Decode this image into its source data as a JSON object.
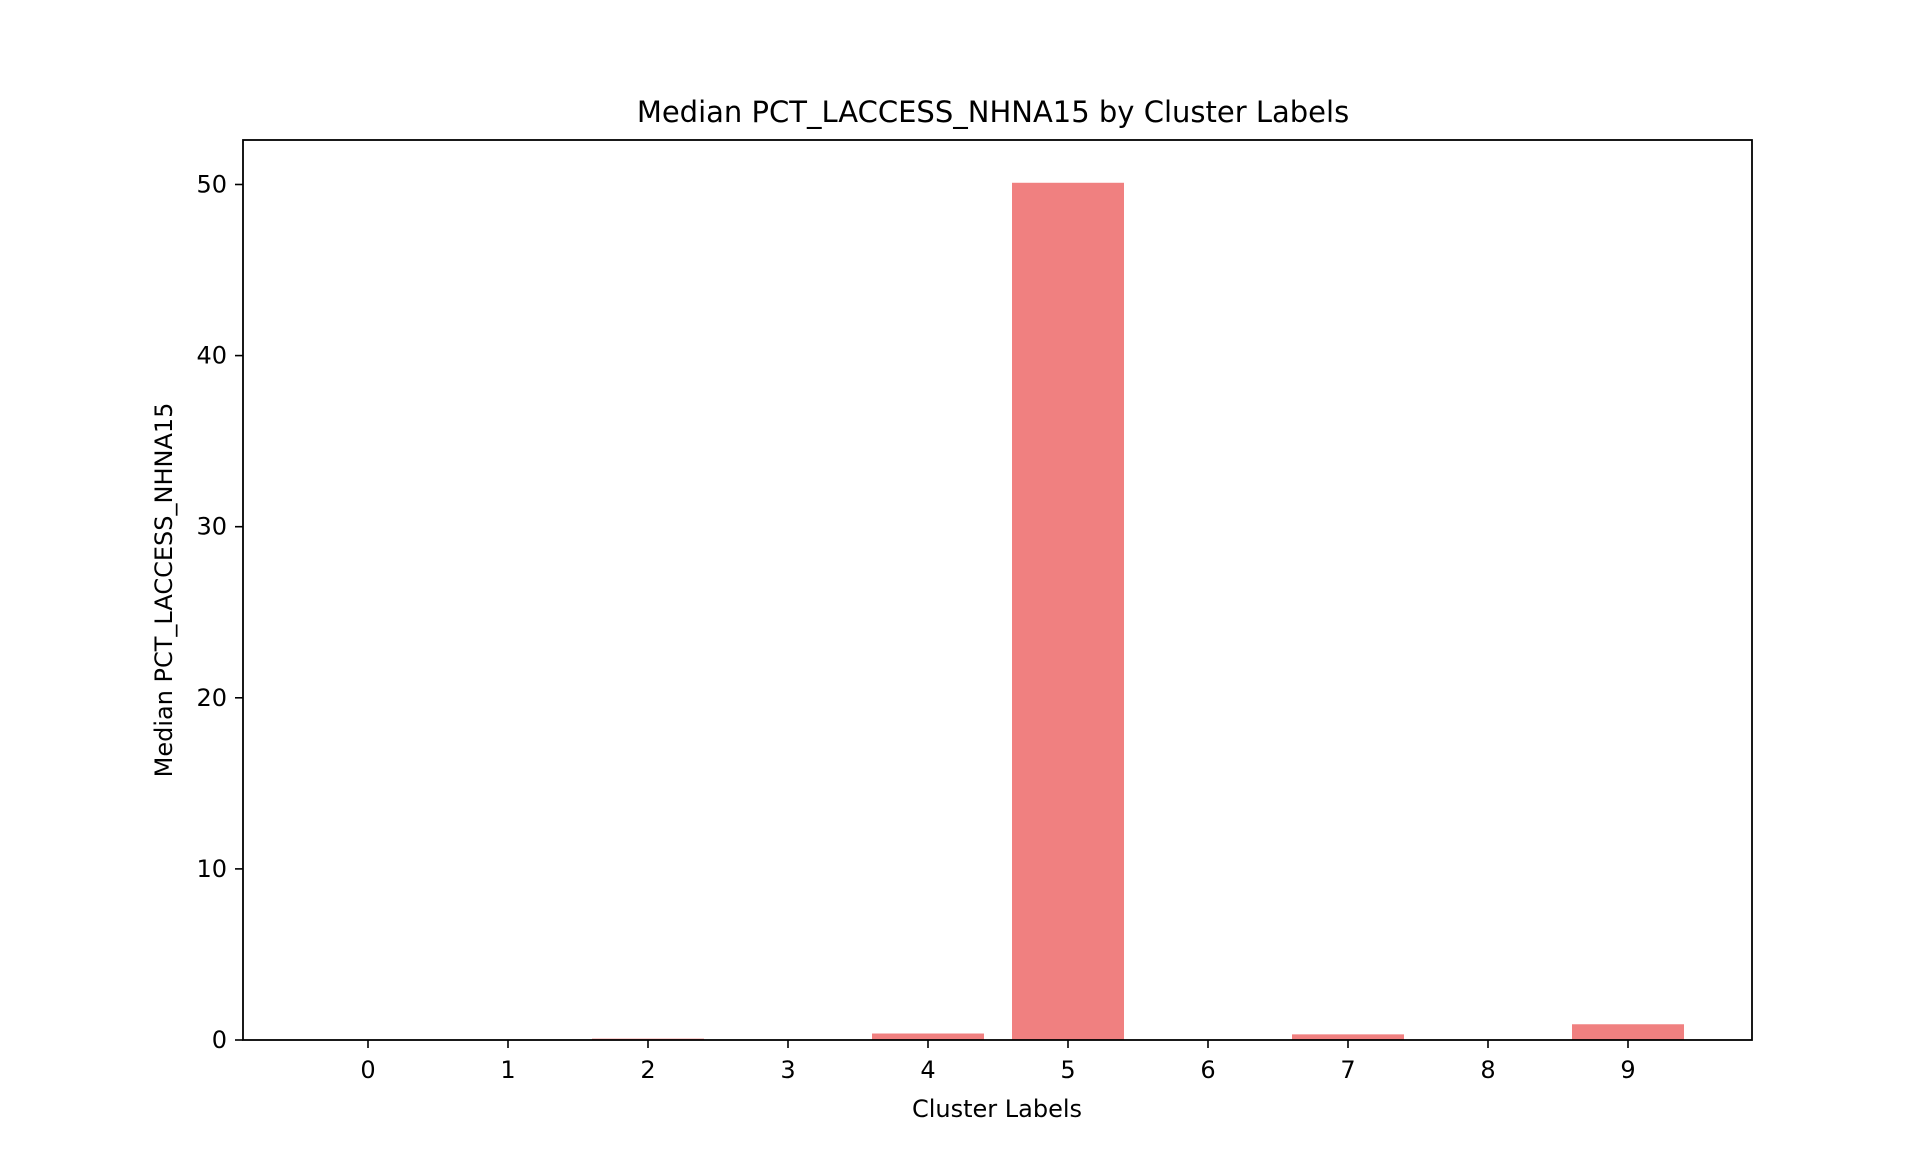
{
  "chart_data": {
    "type": "bar",
    "title": "Median PCT_LACCESS_NHNA15 by Cluster Labels",
    "xlabel": "Cluster Labels",
    "ylabel": "Median PCT_LACCESS_NHNA15",
    "categories": [
      "0",
      "1",
      "2",
      "3",
      "4",
      "5",
      "6",
      "7",
      "8",
      "9"
    ],
    "values": [
      0.0,
      0.0,
      0.08,
      0.0,
      0.38,
      50.1,
      0.0,
      0.33,
      0.0,
      0.92
    ],
    "yticks": [
      "0",
      "10",
      "20",
      "30",
      "40",
      "50"
    ],
    "ylim": [
      0,
      52.6
    ],
    "bar_color": "#f08080",
    "grid": false,
    "legend": "none"
  }
}
